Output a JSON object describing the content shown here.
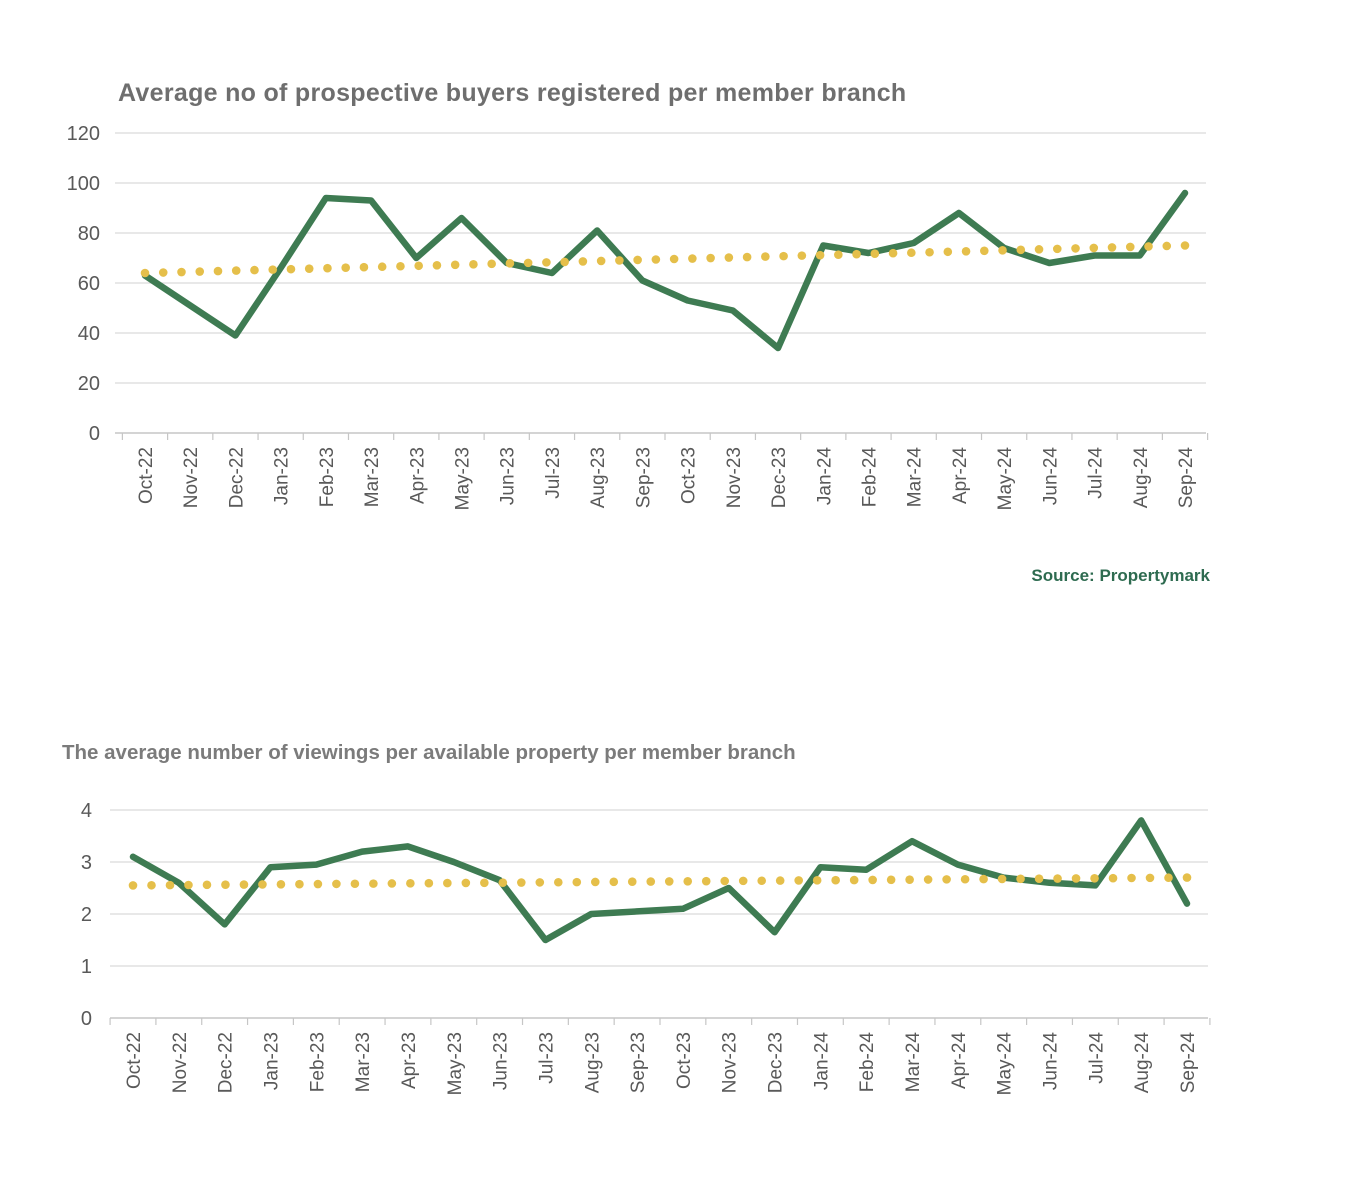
{
  "source_label": "Source: Propertymark",
  "colors": {
    "line_green": "#3e7b52",
    "trend_yellow": "#e5bf4a",
    "gridline": "#d9d9d9",
    "axis_line": "#c6c6c6",
    "axis_text": "#595959",
    "title_text": "#6e6e6e",
    "source_text": "#2e6b50"
  },
  "chart_data": [
    {
      "type": "line",
      "title": "Average no of prospective buyers registered per member branch",
      "categories": [
        "Oct-22",
        "Nov-22",
        "Dec-22",
        "Jan-23",
        "Feb-23",
        "Mar-23",
        "Apr-23",
        "May-23",
        "Jun-23",
        "Jul-23",
        "Aug-23",
        "Sep-23",
        "Oct-23",
        "Nov-23",
        "Dec-23",
        "Jan-24",
        "Feb-24",
        "Mar-24",
        "Apr-24",
        "May-24",
        "Jun-24",
        "Jul-24",
        "Aug-24",
        "Sep-24"
      ],
      "series": [
        {
          "name": "actual",
          "style": "solid",
          "color": "#3e7b52",
          "values": [
            63,
            51,
            39,
            66,
            94,
            93,
            70,
            86,
            68,
            64,
            81,
            61,
            53,
            49,
            34,
            75,
            72,
            76,
            88,
            74,
            68,
            71,
            71,
            96
          ]
        },
        {
          "name": "trend",
          "style": "dotted",
          "color": "#e5bf4a",
          "trend": {
            "start": 64,
            "end": 75
          }
        }
      ],
      "xlabel": "",
      "ylabel": "",
      "ylim": [
        0,
        120
      ],
      "yticks": [
        0,
        20,
        40,
        60,
        80,
        100,
        120
      ],
      "grid": true,
      "legend": "none"
    },
    {
      "type": "line",
      "title": "The average number of viewings per available property per member branch",
      "categories": [
        "Oct-22",
        "Nov-22",
        "Dec-22",
        "Jan-23",
        "Feb-23",
        "Mar-23",
        "Apr-23",
        "May-23",
        "Jun-23",
        "Jul-23",
        "Aug-23",
        "Sep-23",
        "Oct-23",
        "Nov-23",
        "Dec-23",
        "Jan-24",
        "Feb-24",
        "Mar-24",
        "Apr-24",
        "May-24",
        "Jun-24",
        "Jul-24",
        "Aug-24",
        "Sep-24"
      ],
      "series": [
        {
          "name": "actual",
          "style": "solid",
          "color": "#3e7b52",
          "values": [
            3.1,
            2.6,
            1.8,
            2.9,
            2.95,
            3.2,
            3.3,
            3.0,
            2.65,
            1.5,
            2.0,
            2.05,
            2.1,
            2.5,
            1.65,
            2.9,
            2.85,
            3.4,
            2.95,
            2.7,
            2.6,
            2.55,
            3.8,
            2.2
          ]
        },
        {
          "name": "trend",
          "style": "dotted",
          "color": "#e5bf4a",
          "trend": {
            "start": 2.55,
            "end": 2.7
          }
        }
      ],
      "xlabel": "",
      "ylabel": "",
      "ylim": [
        0,
        4
      ],
      "yticks": [
        0,
        1,
        2,
        3,
        4
      ],
      "grid": true,
      "legend": "none"
    }
  ]
}
